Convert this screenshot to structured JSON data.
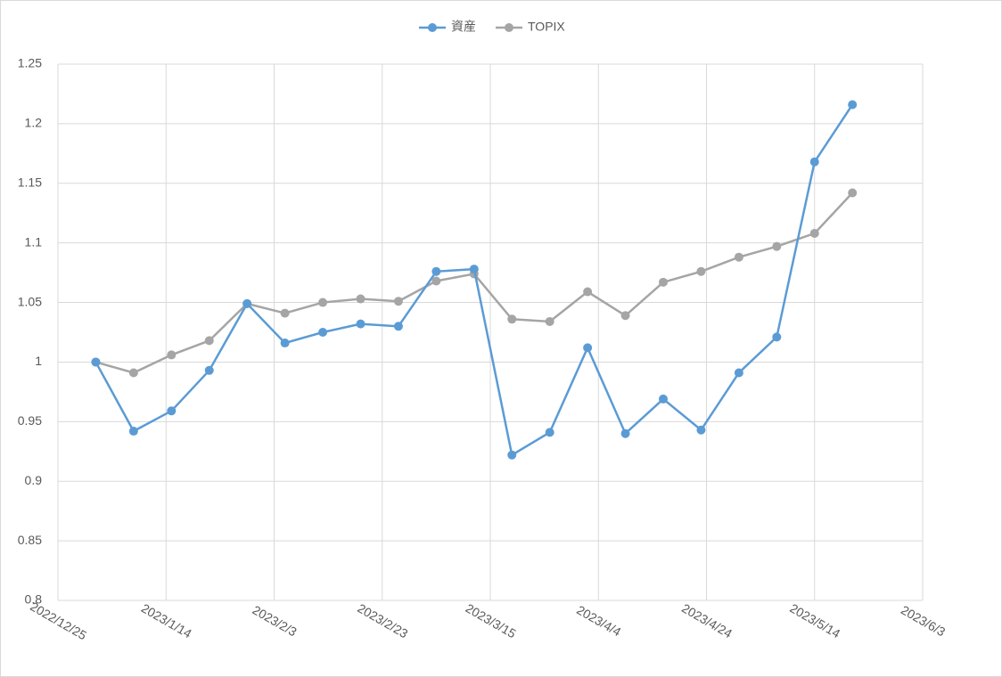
{
  "chart_data": {
    "type": "line",
    "x": [
      "2023/1/1",
      "2023/1/8",
      "2023/1/15",
      "2023/1/22",
      "2023/1/29",
      "2023/2/5",
      "2023/2/12",
      "2023/2/19",
      "2023/2/26",
      "2023/3/5",
      "2023/3/12",
      "2023/3/19",
      "2023/3/26",
      "2023/4/2",
      "2023/4/9",
      "2023/4/16",
      "2023/4/23",
      "2023/4/30",
      "2023/5/7",
      "2023/5/14",
      "2023/5/21"
    ],
    "series": [
      {
        "name": "資産",
        "color": "#5b9bd5",
        "values": [
          1.0,
          0.942,
          0.959,
          0.993,
          1.049,
          1.016,
          1.025,
          1.032,
          1.03,
          1.076,
          1.078,
          0.922,
          0.941,
          1.012,
          0.94,
          0.969,
          0.943,
          0.991,
          1.021,
          1.168,
          1.216
        ]
      },
      {
        "name": "TOPIX",
        "color": "#a5a5a5",
        "values": [
          1.0,
          0.991,
          1.006,
          1.018,
          1.049,
          1.041,
          1.05,
          1.053,
          1.051,
          1.068,
          1.074,
          1.036,
          1.034,
          1.059,
          1.039,
          1.067,
          1.076,
          1.088,
          1.097,
          1.108,
          1.142
        ]
      }
    ],
    "xlim": [
      "2022/12/25",
      "2023/6/3"
    ],
    "xticks": [
      "2022/12/25",
      "2023/1/14",
      "2023/2/3",
      "2023/2/23",
      "2023/3/15",
      "2023/4/4",
      "2023/4/24",
      "2023/5/14",
      "2023/6/3"
    ],
    "ylim": [
      0.8,
      1.25
    ],
    "yticks": [
      0.8,
      0.85,
      0.9,
      0.95,
      1,
      1.05,
      1.1,
      1.15,
      1.2,
      1.25
    ],
    "grid": true,
    "legend": "top"
  }
}
